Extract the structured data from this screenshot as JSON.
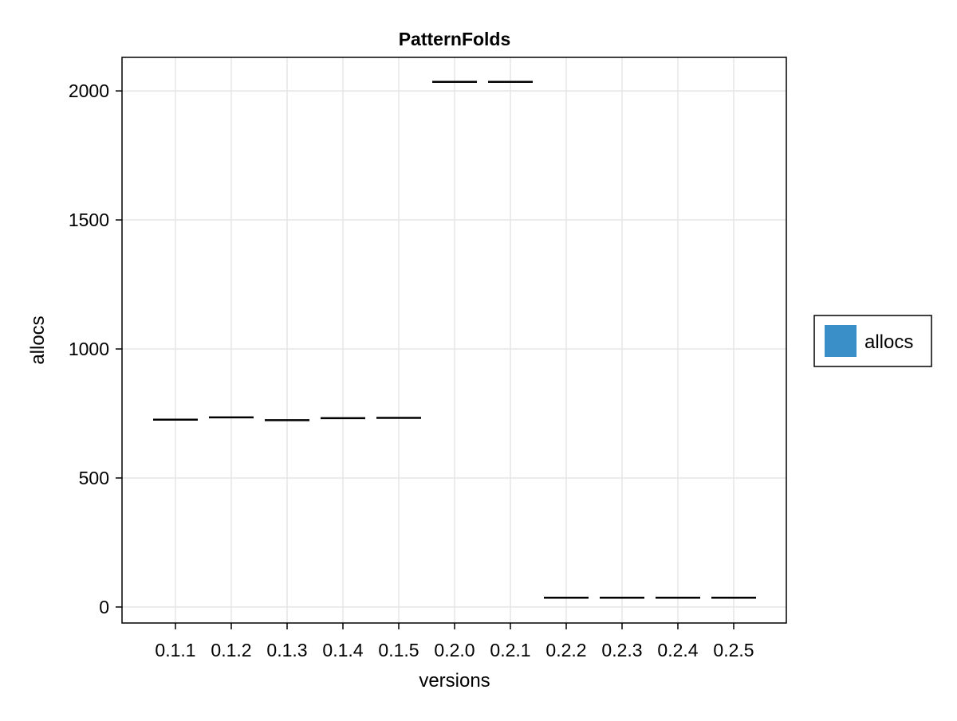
{
  "chart_data": {
    "type": "bar",
    "title": "PatternFolds",
    "xlabel": "versions",
    "ylabel": "allocs",
    "categories": [
      "0.1.1",
      "0.1.2",
      "0.1.3",
      "0.1.4",
      "0.1.5",
      "0.2.0",
      "0.2.1",
      "0.2.2",
      "0.2.3",
      "0.2.4",
      "0.2.5"
    ],
    "series": [
      {
        "name": "allocs",
        "values": [
          726,
          735,
          724,
          732,
          733,
          2035,
          2035,
          36,
          36,
          36,
          36
        ]
      }
    ],
    "ylim": [
      -62,
      2130
    ],
    "yticks": [
      0,
      500,
      1000,
      1500,
      2000
    ],
    "grid": true,
    "legend_position": "right",
    "colors": {
      "series": "#3a8fc8",
      "mark": "#000000",
      "grid": "#e5e5e5",
      "axis": "#000000",
      "text": "#000000"
    }
  }
}
